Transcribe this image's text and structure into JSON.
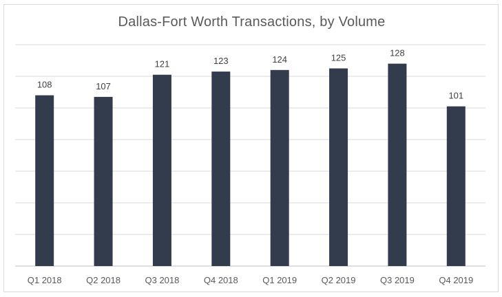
{
  "chart_data": {
    "type": "bar",
    "title": "Dallas-Fort Worth Transactions, by Volume",
    "xlabel": "",
    "ylabel": "",
    "categories": [
      "Q1 2018",
      "Q2 2018",
      "Q3 2018",
      "Q4 2018",
      "Q1 2019",
      "Q2 2019",
      "Q3 2019",
      "Q4 2019"
    ],
    "values": [
      108,
      107,
      121,
      123,
      124,
      125,
      128,
      101
    ],
    "ylim": [
      0,
      140
    ],
    "y_gridlines": [
      20,
      40,
      60,
      80,
      100,
      120,
      140
    ],
    "grid": true,
    "legend": "none",
    "colors": {
      "bar": "#333c4d",
      "grid": "#d9d9d9",
      "axis": "#bfbfbf",
      "title": "#595959",
      "label": "#404040"
    }
  }
}
